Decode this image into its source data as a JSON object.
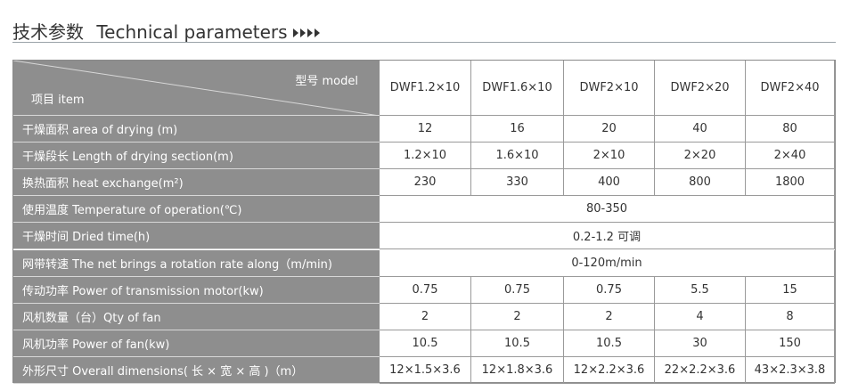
{
  "header": {
    "title_cn": "技术参数",
    "title_en": "Technical parameters"
  },
  "table": {
    "corner": {
      "model": "型号 model",
      "item": "项目 item"
    },
    "columns": [
      "DWF1.2×10",
      "DWF1.6×10",
      "DWF2×10",
      "DWF2×20",
      "DWF2×40"
    ],
    "rows": [
      {
        "label": "干燥面积 area of drying (m)",
        "cells": [
          "12",
          "16",
          "20",
          "40",
          "80"
        ]
      },
      {
        "label": "干燥段长 Length of drying section(m)",
        "cells": [
          "1.2×10",
          "1.6×10",
          "2×10",
          "2×20",
          "2×40"
        ]
      },
      {
        "label": "换热面积 heat exchange(m²)",
        "cells": [
          "230",
          "330",
          "400",
          "800",
          "1800"
        ]
      },
      {
        "label": "使用温度 Temperature of operation(℃)",
        "cells": [
          "80-350"
        ]
      },
      {
        "label": "干燥时间 Dried time(h)",
        "cells": [
          "0.2-1.2 可调"
        ]
      },
      {
        "label": "网带转速 The net brings a rotation rate along（m/min)",
        "cells": [
          "0-120m/min"
        ]
      },
      {
        "label": "传动功率 Power of transmission motor(kw)",
        "cells": [
          "0.75",
          "0.75",
          "0.75",
          "5.5",
          "15"
        ]
      },
      {
        "label": "风机数量（台）Qty of fan",
        "cells": [
          "2",
          "2",
          "2",
          "4",
          "8"
        ]
      },
      {
        "label": "风机功率 Power of fan(kw)",
        "cells": [
          "10.5",
          "10.5",
          "10.5",
          "30",
          "150"
        ]
      },
      {
        "label": "外形尺寸 Overall dimensions( 长 × 宽 × 高 )（m）",
        "cells": [
          "12×1.5×3.6",
          "12×1.8×3.6",
          "12×2.2×3.6",
          "22×2.2×3.6",
          "43×2.3×3.8"
        ]
      }
    ]
  }
}
